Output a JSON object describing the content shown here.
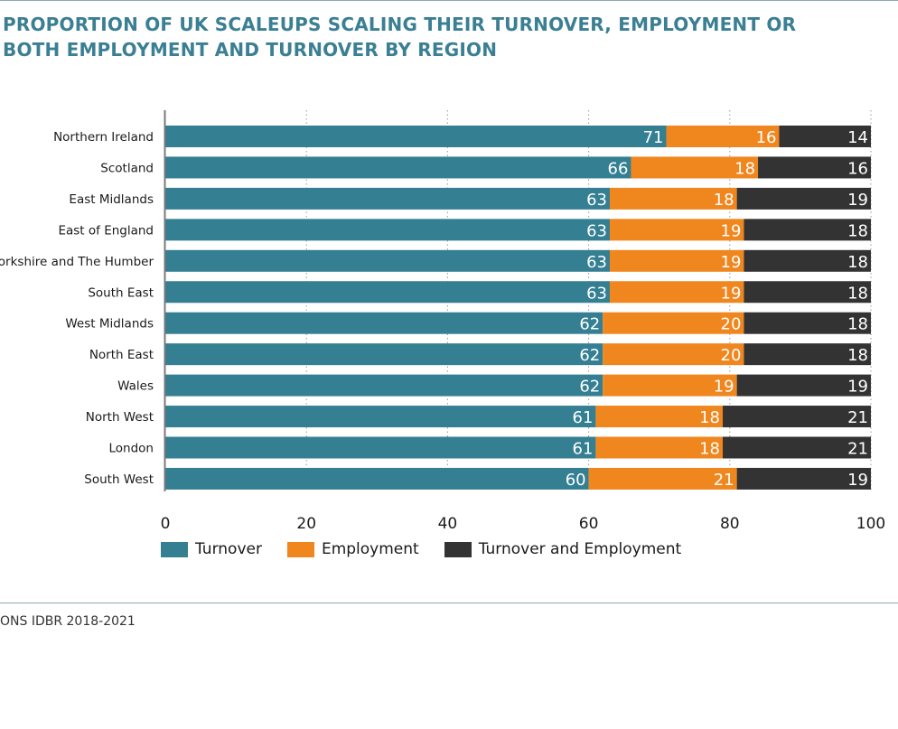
{
  "title": {
    "line1": "PROPORTION OF UK SCALEUPS SCALING THEIR TURNOVER, EMPLOYMENT OR",
    "line2": "BOTH EMPLOYMENT AND TURNOVER BY REGION"
  },
  "source": "ONS IDBR 2018-2021",
  "colors": {
    "title": "#3a7f93",
    "turnover": "#357f93",
    "employment": "#f0861e",
    "turnover_and_employment": "#333333"
  },
  "chart_data": {
    "type": "bar",
    "orientation": "horizontal",
    "stacked": true,
    "categories": [
      "Northern Ireland",
      "Scotland",
      "East Midlands",
      "East of England",
      "Yorkshire and The Humber",
      "South East",
      "West Midlands",
      "North East",
      "Wales",
      "North West",
      "London",
      "South West"
    ],
    "series": [
      {
        "name": "Turnover",
        "color": "#357f93",
        "values": [
          71,
          66,
          63,
          63,
          63,
          63,
          62,
          62,
          62,
          61,
          61,
          60
        ]
      },
      {
        "name": "Employment",
        "color": "#f0861e",
        "values": [
          16,
          18,
          18,
          19,
          19,
          19,
          20,
          20,
          19,
          18,
          18,
          21
        ]
      },
      {
        "name": "Turnover and Employment",
        "color": "#333333",
        "values": [
          14,
          16,
          19,
          18,
          18,
          18,
          18,
          18,
          19,
          21,
          21,
          19
        ]
      }
    ],
    "xlim": [
      0,
      100
    ],
    "xticks": [
      "0",
      "20",
      "40",
      "60",
      "80",
      "100"
    ],
    "grid": "vertical dotted",
    "legend_position": "bottom"
  }
}
